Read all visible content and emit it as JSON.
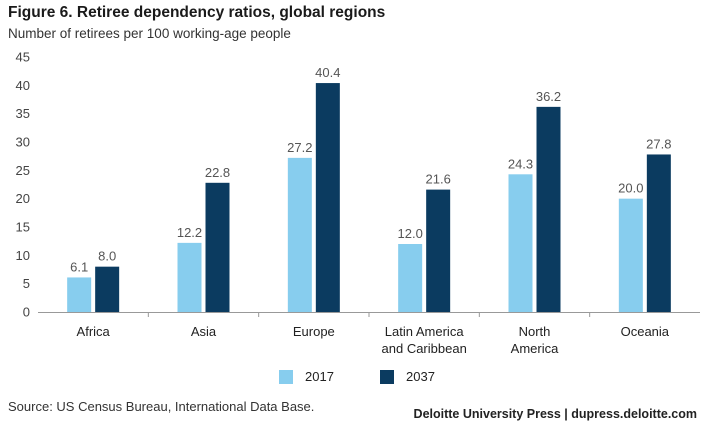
{
  "header": {
    "title": "Figure 6. Retiree dependency ratios, global regions",
    "subtitle": "Number of retirees per 100 working-age people"
  },
  "footer": {
    "source": "Source: US Census Bureau, International Data Base.",
    "credit": "Deloitte University Press  |  dupress.deloitte.com"
  },
  "colors": {
    "2017": "#87cdee",
    "2037": "#0b3b60",
    "axis": "#999999"
  },
  "chart_data": {
    "type": "bar",
    "title": "Figure 6. Retiree dependency ratios, global regions",
    "subtitle": "Number of retirees per 100 working-age people",
    "categories": [
      [
        "Africa"
      ],
      [
        "Asia"
      ],
      [
        "Europe"
      ],
      [
        "Latin America",
        "and Caribbean"
      ],
      [
        "North",
        "America"
      ],
      [
        "Oceania"
      ]
    ],
    "series": [
      {
        "name": "2017",
        "values": [
          6.1,
          12.2,
          27.2,
          12.0,
          24.3,
          20.0
        ]
      },
      {
        "name": "2037",
        "values": [
          8.0,
          22.8,
          40.4,
          21.6,
          36.2,
          27.8
        ]
      }
    ],
    "ylim": [
      0,
      45
    ],
    "yticks": [
      0,
      5,
      10,
      15,
      20,
      25,
      30,
      35,
      40,
      45
    ],
    "grid": false,
    "legend_position": "bottom-center"
  }
}
